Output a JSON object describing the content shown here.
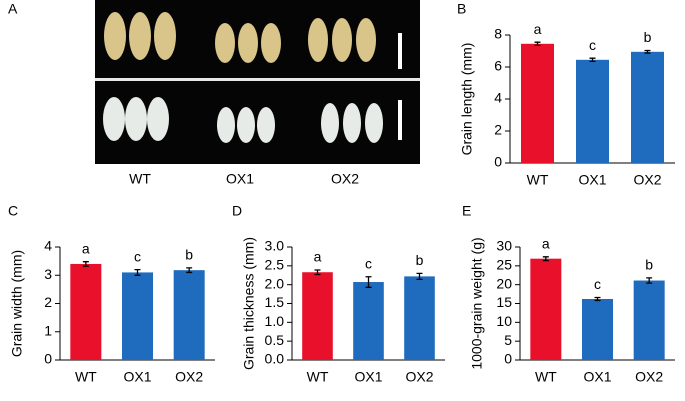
{
  "photo_panel": {
    "panel": "A",
    "labels": [
      "WT",
      "OX1",
      "OX2"
    ]
  },
  "chart_data": [
    {
      "type": "bar",
      "panel": "B",
      "ylabel": "Grain length (mm)",
      "categories": [
        "WT",
        "OX1",
        "OX2"
      ],
      "values": [
        7.45,
        6.45,
        6.95
      ],
      "errors": [
        0.1,
        0.1,
        0.08
      ],
      "annotations": [
        "a",
        "c",
        "b"
      ],
      "colors": [
        "#e8102a",
        "#1f6bbd",
        "#1f6bbd"
      ],
      "ylim": [
        0,
        8
      ],
      "yticks": [
        0,
        2,
        4,
        6,
        8
      ]
    },
    {
      "type": "bar",
      "panel": "C",
      "ylabel": "Grain width (mm)",
      "categories": [
        "WT",
        "OX1",
        "OX2"
      ],
      "values": [
        3.4,
        3.1,
        3.18
      ],
      "errors": [
        0.08,
        0.1,
        0.08
      ],
      "annotations": [
        "a",
        "c",
        "b"
      ],
      "colors": [
        "#e8102a",
        "#1f6bbd",
        "#1f6bbd"
      ],
      "ylim": [
        0,
        4
      ],
      "yticks": [
        0,
        1,
        2,
        3,
        4
      ]
    },
    {
      "type": "bar",
      "panel": "D",
      "ylabel": "Grain thickness (mm)",
      "categories": [
        "WT",
        "OX1",
        "OX2"
      ],
      "values": [
        2.33,
        2.07,
        2.22
      ],
      "errors": [
        0.06,
        0.14,
        0.08
      ],
      "annotations": [
        "a",
        "c",
        "b"
      ],
      "colors": [
        "#e8102a",
        "#1f6bbd",
        "#1f6bbd"
      ],
      "ylim": [
        0,
        3
      ],
      "yticks": [
        {
          "value": 0,
          "label": "0.0"
        },
        0.5,
        {
          "value": 1,
          "label": "1.0"
        },
        1.5,
        {
          "value": 2,
          "label": "2.0"
        },
        2.5,
        {
          "value": 3,
          "label": "3.0"
        }
      ]
    },
    {
      "type": "bar",
      "panel": "E",
      "ylabel": "1000-grain weight (g)",
      "categories": [
        "WT",
        "OX1",
        "OX2"
      ],
      "values": [
        26.9,
        16.2,
        21.1
      ],
      "errors": [
        0.5,
        0.4,
        0.7
      ],
      "annotations": [
        "a",
        "c",
        "b"
      ],
      "colors": [
        "#e8102a",
        "#1f6bbd",
        "#1f6bbd"
      ],
      "ylim": [
        0,
        30
      ],
      "yticks": [
        0,
        5,
        10,
        15,
        20,
        25,
        30
      ]
    }
  ]
}
